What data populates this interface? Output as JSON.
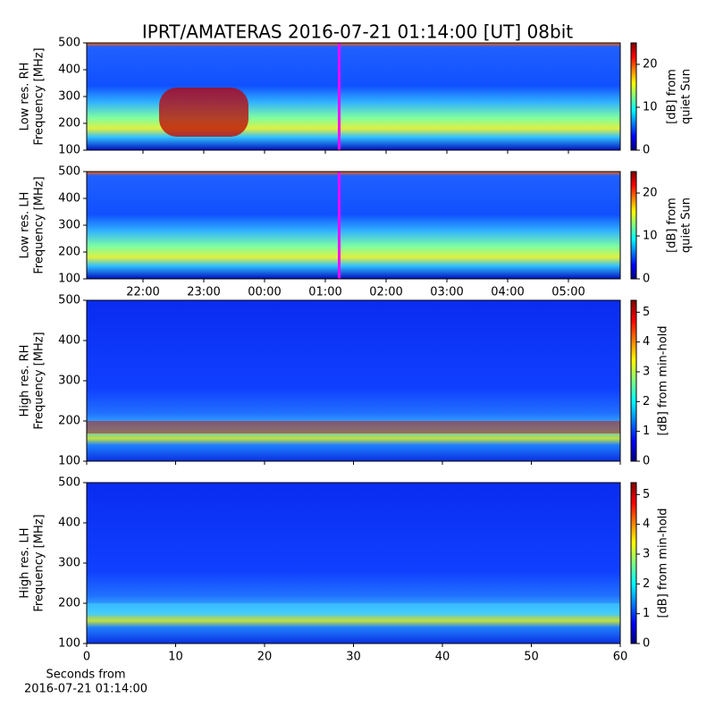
{
  "chart_data": [
    {
      "type": "spectrogram",
      "title": "IPRT/AMATERAS 2016-07-21 01:14:00 [UT]   08bit",
      "ylabel": [
        "Low res. RH",
        "Frequency [MHz]"
      ],
      "ylim": [
        100,
        500
      ],
      "yticks": [
        100,
        200,
        300,
        400,
        500
      ],
      "colorbar": {
        "label": [
          "[dB] from",
          "quiet Sun"
        ],
        "lim": [
          0,
          25
        ],
        "ticks": [
          0,
          10,
          20
        ]
      }
    },
    {
      "type": "spectrogram",
      "ylabel": [
        "Low res. LH",
        "Frequency [MHz]"
      ],
      "ylim": [
        100,
        500
      ],
      "yticks": [
        100,
        200,
        300,
        400,
        500
      ],
      "x_tick_labels": [
        "22:00",
        "23:00",
        "00:00",
        "01:00",
        "02:00",
        "03:00",
        "04:00",
        "05:00"
      ],
      "colorbar": {
        "label": [
          "[dB] from",
          "quiet Sun"
        ],
        "lim": [
          0,
          25
        ],
        "ticks": [
          0,
          10,
          20
        ]
      }
    },
    {
      "type": "spectrogram",
      "ylabel": [
        "High res. RH",
        "Frequency [MHz]"
      ],
      "ylim": [
        100,
        500
      ],
      "yticks": [
        100,
        200,
        300,
        400,
        500
      ],
      "colorbar": {
        "label": [
          "[dB] from min-hold"
        ],
        "lim": [
          0,
          5.4
        ],
        "ticks": [
          0,
          1,
          2,
          3,
          4,
          5
        ]
      }
    },
    {
      "type": "spectrogram",
      "ylabel": [
        "High res. LH",
        "Frequency [MHz]"
      ],
      "ylim": [
        100,
        500
      ],
      "yticks": [
        100,
        200,
        300,
        400,
        500
      ],
      "xlim": [
        0,
        60
      ],
      "xticks": [
        0,
        10,
        20,
        30,
        40,
        50,
        60
      ],
      "xlabel": [
        "Seconds from",
        "2016-07-21 01:14:00"
      ],
      "colorbar": {
        "label": [
          "[dB] from min-hold"
        ],
        "lim": [
          0,
          5.4
        ],
        "ticks": [
          0,
          1,
          2,
          3,
          4,
          5
        ]
      }
    }
  ]
}
